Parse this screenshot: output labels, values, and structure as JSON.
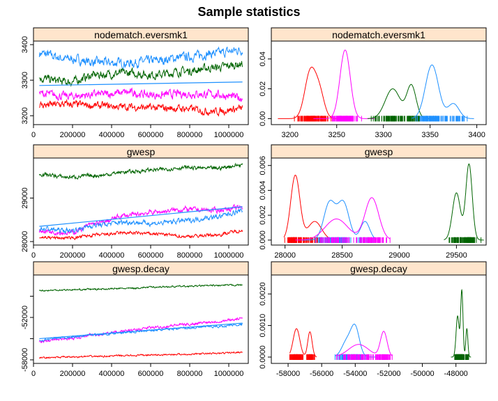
{
  "title": "Sample statistics",
  "colors": {
    "strip": "#ffe5cc",
    "series": [
      "#ff0000",
      "#ff00ff",
      "#1e90ff",
      "#006400"
    ],
    "trend": "#1e90ff"
  },
  "chart_data": [
    {
      "id": "trace-nodematch",
      "type": "line",
      "title": "nodematch.eversmk1",
      "xlabel": "",
      "ylabel": "",
      "xlim": [
        0,
        1100000
      ],
      "ylim": [
        3175,
        3410
      ],
      "x_ticks": [
        0,
        200000,
        400000,
        600000,
        800000,
        1000000
      ],
      "x_tick_labels": [
        "0",
        "200000",
        "400000",
        "600000",
        "800000",
        "1000000"
      ],
      "y_ticks": [
        3200,
        3300,
        3400
      ],
      "y_tick_labels": [
        "3200",
        "3300",
        "3400"
      ],
      "x": [
        30000,
        1070000
      ],
      "series": [
        {
          "color": "#1e90ff",
          "values": [
            3375,
            3380
          ],
          "knots": [
            3375,
            3360,
            3350,
            3348,
            3355,
            3365,
            3375,
            3385
          ],
          "noise": 10
        },
        {
          "color": "#006400",
          "values": [
            3305,
            3345
          ],
          "knots": [
            3305,
            3295,
            3315,
            3320,
            3315,
            3325,
            3335,
            3345
          ],
          "noise": 9
        },
        {
          "color": "#ff00ff",
          "values": [
            3262,
            3250
          ],
          "knots": [
            3262,
            3255,
            3260,
            3265,
            3258,
            3262,
            3260,
            3250
          ],
          "noise": 9
        },
        {
          "color": "#ff0000",
          "values": [
            3230,
            3220
          ],
          "knots": [
            3230,
            3232,
            3228,
            3225,
            3222,
            3220,
            3212,
            3220
          ],
          "noise": 8
        }
      ],
      "trend": {
        "color": "#1e90ff",
        "values": [
          3285,
          3295
        ]
      }
    },
    {
      "id": "density-nodematch",
      "type": "area",
      "title": "nodematch.eversmk1",
      "xlabel": "",
      "ylabel": "",
      "xlim": [
        3180,
        3410
      ],
      "ylim": [
        -0.004,
        0.052
      ],
      "x_ticks": [
        3200,
        3250,
        3300,
        3350,
        3400
      ],
      "x_tick_labels": [
        "3200",
        "3250",
        "3300",
        "3350",
        "3400"
      ],
      "y_ticks": [
        0.0,
        0.02,
        0.04
      ],
      "y_tick_labels": [
        "0.00",
        "0.02",
        "0.04"
      ],
      "series": [
        {
          "color": "#ff0000",
          "range": [
            3187,
            3262
          ],
          "peaks": [
            [
              3222,
              6,
              0.032
            ],
            [
              3232,
              5,
              0.015
            ]
          ]
        },
        {
          "color": "#ff00ff",
          "range": [
            3225,
            3292
          ],
          "peaks": [
            [
              3259,
              5.5,
              0.046
            ]
          ]
        },
        {
          "color": "#006400",
          "range": [
            3283,
            3356
          ],
          "peaks": [
            [
              3310,
              8,
              0.02
            ],
            [
              3330,
              5,
              0.022
            ]
          ]
        },
        {
          "color": "#1e90ff",
          "range": [
            3330,
            3397
          ],
          "peaks": [
            [
              3352,
              7,
              0.036
            ],
            [
              3375,
              6,
              0.01
            ]
          ]
        }
      ]
    },
    {
      "id": "trace-gwesp",
      "type": "line",
      "title": "gwesp",
      "xlabel": "",
      "ylabel": "",
      "xlim": [
        0,
        1100000
      ],
      "ylim": [
        27920,
        29920
      ],
      "x_ticks": [
        0,
        200000,
        400000,
        600000,
        800000,
        1000000
      ],
      "x_tick_labels": [
        "0",
        "200000",
        "400000",
        "600000",
        "800000",
        "1000000"
      ],
      "y_ticks": [
        28000,
        29000
      ],
      "y_tick_labels": [
        "28000",
        "29000"
      ],
      "x": [
        30000,
        1070000
      ],
      "series": [
        {
          "color": "#006400",
          "values": [
            29550,
            29750
          ],
          "knots": [
            29550,
            29480,
            29520,
            29600,
            29650,
            29700,
            29680,
            29760
          ],
          "noise": 35
        },
        {
          "color": "#ff00ff",
          "values": [
            28250,
            28780
          ],
          "knots": [
            28250,
            28200,
            28420,
            28600,
            28680,
            28740,
            28720,
            28780
          ],
          "noise": 45
        },
        {
          "color": "#1e90ff",
          "values": [
            28300,
            28700
          ],
          "knots": [
            28300,
            28250,
            28380,
            28450,
            28420,
            28480,
            28560,
            28700
          ],
          "noise": 45
        },
        {
          "color": "#ff0000",
          "values": [
            28100,
            28250
          ],
          "knots": [
            28100,
            28080,
            28150,
            28200,
            28180,
            28120,
            28150,
            28250
          ],
          "noise": 30
        }
      ],
      "trend": {
        "color": "#1e90ff",
        "values": [
          28350,
          28800
        ]
      }
    },
    {
      "id": "density-gwesp",
      "type": "area",
      "title": "gwesp",
      "xlabel": "",
      "ylabel": "",
      "xlim": [
        27880,
        29760
      ],
      "ylim": [
        -0.0004,
        0.0066
      ],
      "x_ticks": [
        28000,
        28500,
        29000,
        29500
      ],
      "x_tick_labels": [
        "28000",
        "28500",
        "29000",
        "29500"
      ],
      "y_ticks": [
        0.0,
        0.002,
        0.004,
        0.006
      ],
      "y_tick_labels": [
        "0.000",
        "0.002",
        "0.004",
        "0.006"
      ],
      "series": [
        {
          "color": "#ff0000",
          "range": [
            27990,
            28420
          ],
          "peaks": [
            [
              28090,
              40,
              0.0052
            ],
            [
              28260,
              60,
              0.0015
            ]
          ]
        },
        {
          "color": "#1e90ff",
          "range": [
            28150,
            28800
          ],
          "peaks": [
            [
              28390,
              50,
              0.003
            ],
            [
              28510,
              50,
              0.003
            ],
            [
              28700,
              40,
              0.0015
            ]
          ]
        },
        {
          "color": "#ff00ff",
          "range": [
            28090,
            28920
          ],
          "peaks": [
            [
              28450,
              100,
              0.0017
            ],
            [
              28760,
              60,
              0.0034
            ]
          ]
        },
        {
          "color": "#006400",
          "range": [
            29390,
            29740
          ],
          "peaks": [
            [
              29500,
              35,
              0.0038
            ],
            [
              29610,
              28,
              0.0061
            ]
          ]
        }
      ]
    },
    {
      "id": "trace-gwesp-decay",
      "type": "line",
      "title": "gwesp.decay",
      "xlabel": "",
      "ylabel": "",
      "xlim": [
        0,
        1100000
      ],
      "ylim": [
        -58500,
        -46000
      ],
      "x_ticks": [
        0,
        200000,
        400000,
        600000,
        800000,
        1000000
      ],
      "x_tick_labels": [
        "0",
        "200000",
        "400000",
        "600000",
        "800000",
        "1000000"
      ],
      "y_ticks": [
        -58000,
        -52000
      ],
      "y_tick_labels": [
        "-58000",
        "-52000"
      ],
      "extra_y_ticks": [
        -55000,
        -49000
      ],
      "x": [
        30000,
        1070000
      ],
      "series": [
        {
          "color": "#006400",
          "values": [
            -48200,
            -47400
          ],
          "knots": [
            -48200,
            -48100,
            -48000,
            -47900,
            -47700,
            -47600,
            -47500,
            -47400
          ],
          "noise": 90
        },
        {
          "color": "#ff00ff",
          "values": [
            -55400,
            -52200
          ],
          "knots": [
            -55400,
            -55000,
            -54400,
            -53900,
            -53400,
            -53000,
            -52600,
            -52200
          ],
          "noise": 150
        },
        {
          "color": "#1e90ff",
          "values": [
            -55200,
            -53000
          ],
          "knots": [
            -55200,
            -54800,
            -54400,
            -54100,
            -53800,
            -53500,
            -53300,
            -53000
          ],
          "noise": 130
        },
        {
          "color": "#ff0000",
          "values": [
            -57700,
            -56900
          ],
          "knots": [
            -57700,
            -57600,
            -57500,
            -57400,
            -57300,
            -57200,
            -57100,
            -56900
          ],
          "noise": 90
        }
      ],
      "trend": {
        "color": "#1e90ff",
        "values": [
          -55000,
          -52800
        ]
      }
    },
    {
      "id": "density-gwesp-decay",
      "type": "area",
      "title": "gwesp.decay",
      "xlabel": "",
      "ylabel": "",
      "xlim": [
        -59000,
        -46200
      ],
      "ylim": [
        -0.0002,
        0.0026
      ],
      "x_ticks": [
        -58000,
        -56000,
        -54000,
        -52000,
        -50000,
        -48000
      ],
      "x_tick_labels": [
        "-58000",
        "-56000",
        "-54000",
        "-52000",
        "-50000",
        "-48000"
      ],
      "y_ticks": [
        0.0,
        0.001,
        0.002
      ],
      "y_tick_labels": [
        "0.0000",
        "0.0010",
        "0.0020"
      ],
      "series": [
        {
          "color": "#ff0000",
          "range": [
            -57900,
            -56300
          ],
          "peaks": [
            [
              -57500,
              200,
              0.0009
            ],
            [
              -56700,
              130,
              0.0008
            ]
          ]
        },
        {
          "color": "#1e90ff",
          "range": [
            -55200,
            -52700
          ],
          "peaks": [
            [
              -54000,
              250,
              0.0009
            ],
            [
              -54500,
              300,
              0.0005
            ]
          ]
        },
        {
          "color": "#ff00ff",
          "range": [
            -55100,
            -51800
          ],
          "peaks": [
            [
              -53800,
              600,
              0.0004
            ],
            [
              -52300,
              200,
              0.0008
            ]
          ]
        },
        {
          "color": "#006400",
          "range": [
            -48300,
            -47100
          ],
          "peaks": [
            [
              -47900,
              90,
              0.0013
            ],
            [
              -47650,
              70,
              0.0021
            ],
            [
              -47350,
              60,
              0.0009
            ]
          ]
        }
      ]
    }
  ]
}
